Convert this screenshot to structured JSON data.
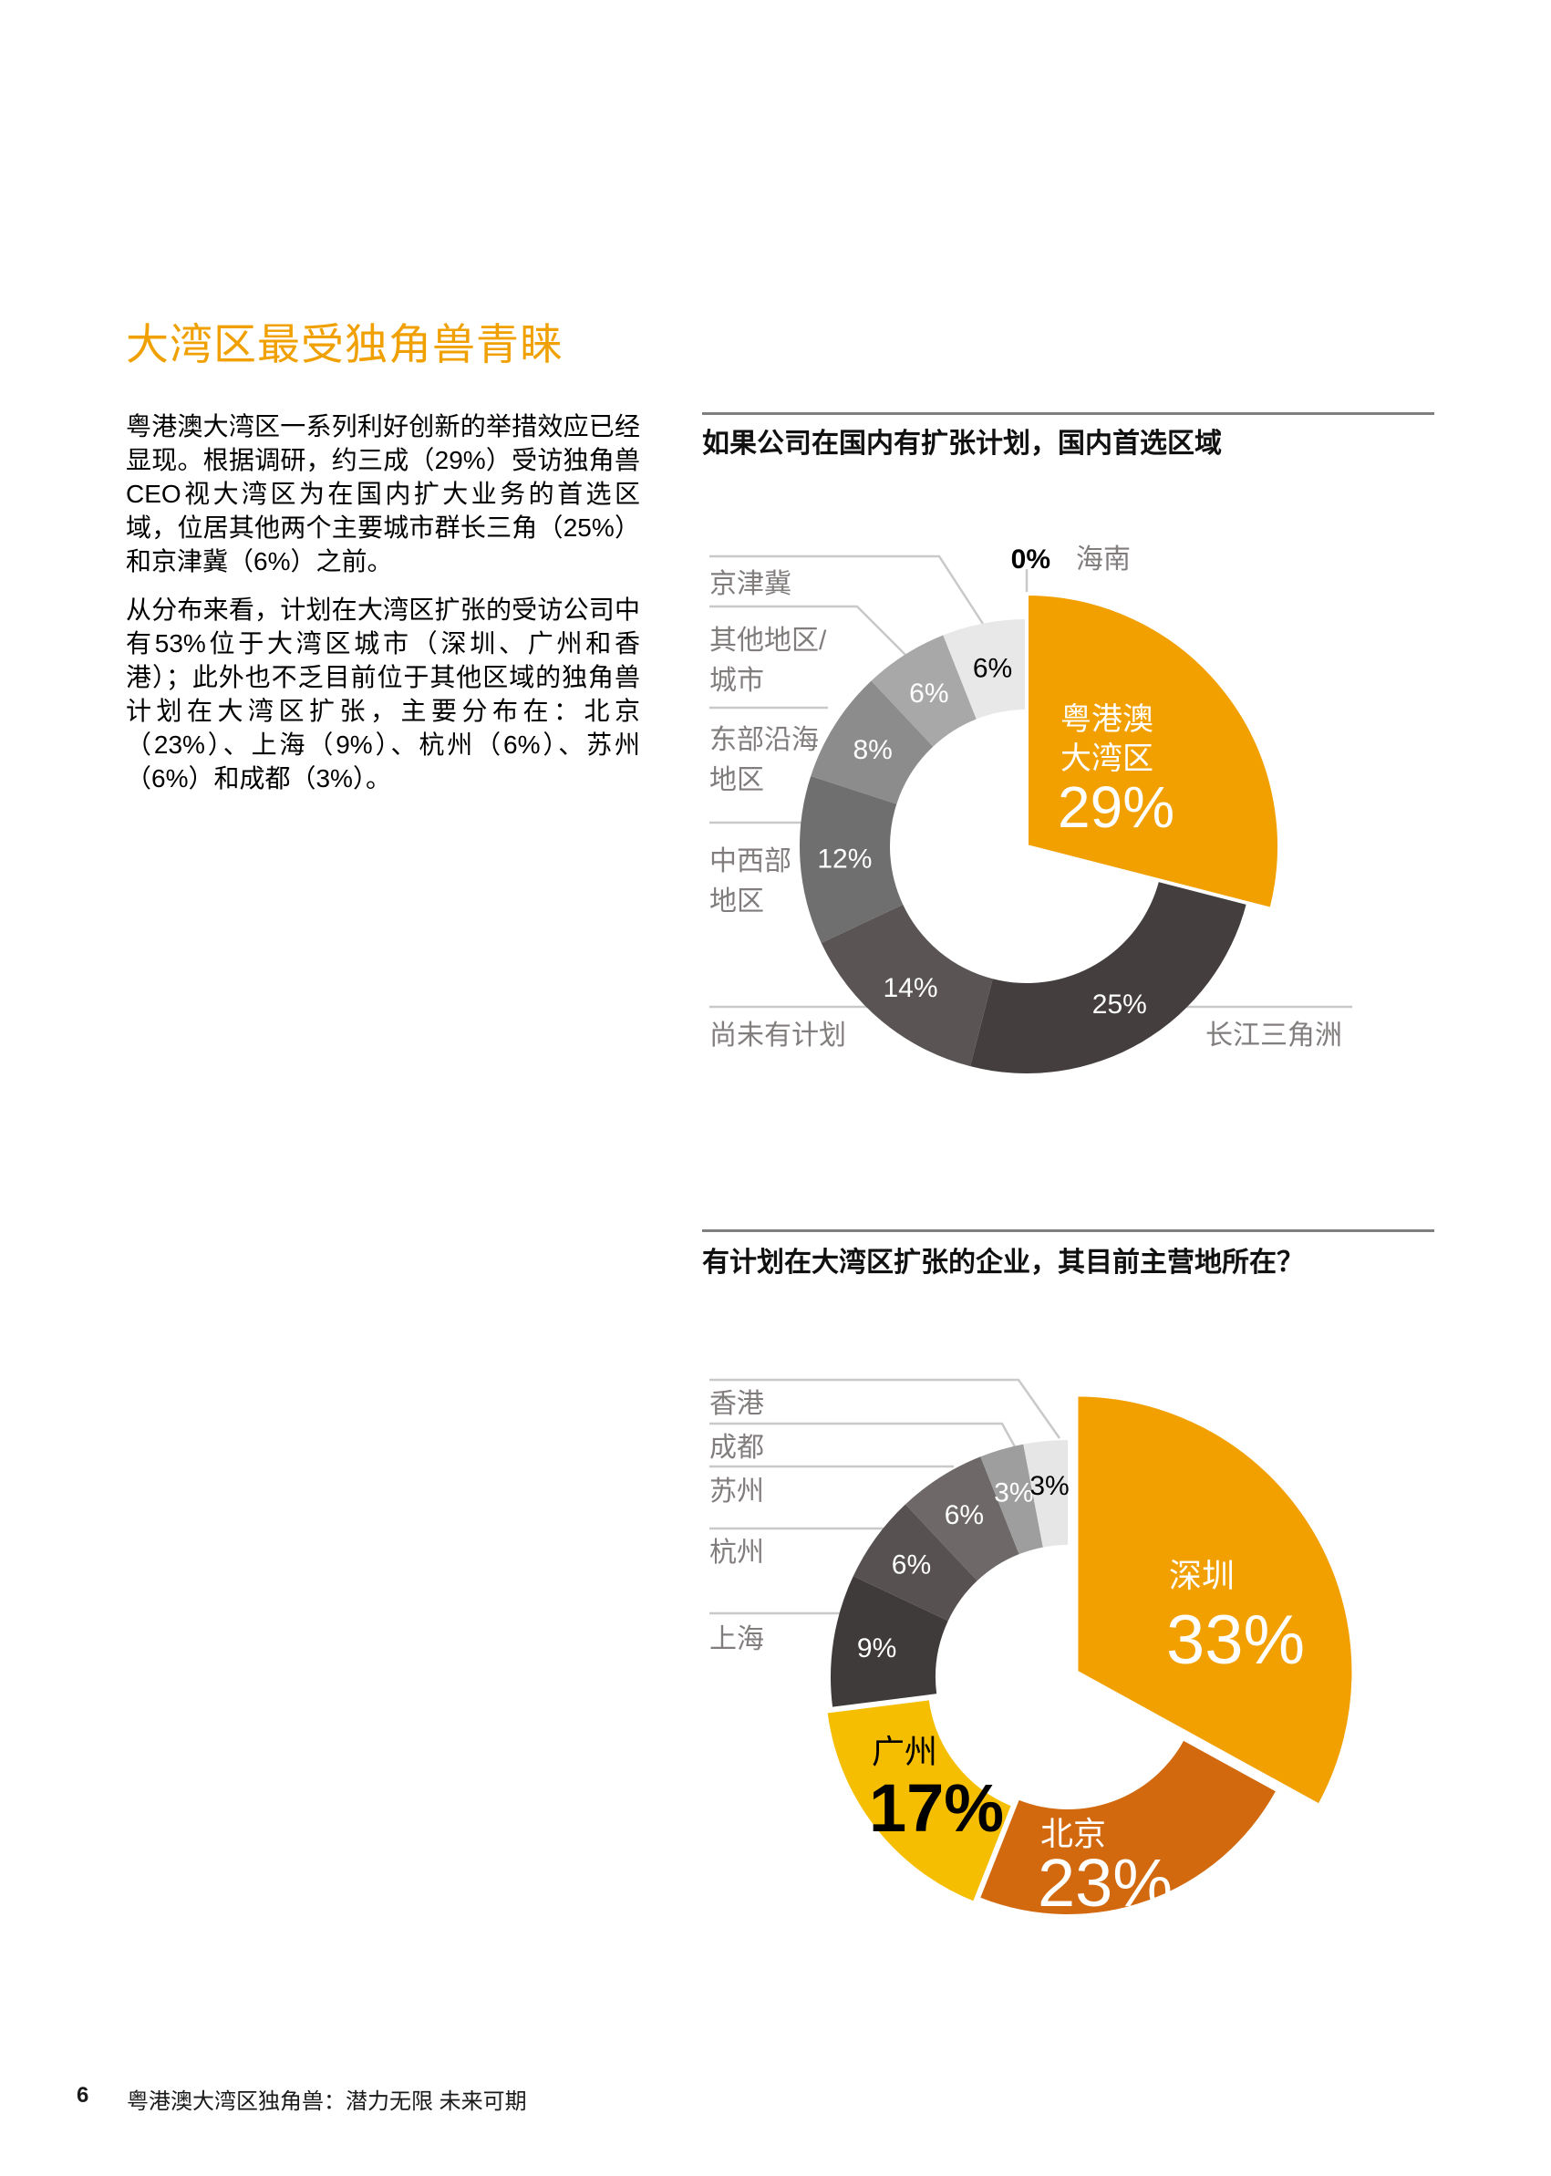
{
  "page": {
    "title": "大湾区最受独角兽青睐",
    "paragraphs": [
      "粤港澳大湾区一系列利好创新的举措效应已经显现。根据调研，约三成（29%）受访独角兽CEO视大湾区为在国内扩大业务的首选区域，位居其他两个主要城市群长三角（25%）和京津冀（6%）之前。",
      "从分布来看，计划在大湾区扩张的受访公司中有53%位于大湾区城市（深圳、广州和香港）；此外也不乏目前位于其他区域的独角兽计划在大湾区扩张，主要分布在：北京（23%）、上海（9%）、杭州（6%）、苏州（6%）和成都（3%）。"
    ],
    "footer": {
      "page_number": "6",
      "report_title": "粤港澳大湾区独角兽：潜力无限 未来可期"
    }
  },
  "colors": {
    "accent_orange": "#F0A000",
    "dark_orange": "#D2690E",
    "yellow": "#F5BE00",
    "rule_gray": "#7F7F7F",
    "label_gray": "#827D7D",
    "leader_gray": "#C9C9C9"
  },
  "chart_data": [
    {
      "type": "pie",
      "title": "如果公司在国内有扩张计划，国内首选区域",
      "legend_position": "callout-labels",
      "slices": [
        {
          "name": "粤港澳大湾区",
          "value": 29,
          "color": "#F2A000",
          "label_lines": [
            "粤港澳",
            "大湾区"
          ]
        },
        {
          "name": "长江三角洲",
          "value": 25,
          "color": "#453E3E"
        },
        {
          "name": "尚未有计划",
          "value": 14,
          "color": "#5A5454"
        },
        {
          "name": "中西部地区",
          "value": 12,
          "color": "#6F6F6F",
          "label_lines": [
            "中西部",
            "地区"
          ]
        },
        {
          "name": "东部沿海地区",
          "value": 8,
          "color": "#8C8C8C",
          "label_lines": [
            "东部沿海",
            "地区"
          ]
        },
        {
          "name": "其他地区/城市",
          "value": 6,
          "color": "#A8A8A8",
          "label_lines": [
            "其他地区/",
            "城市"
          ]
        },
        {
          "name": "京津冀",
          "value": 6,
          "color": "#E8E8E8",
          "pct_color": "#000000"
        },
        {
          "name": "海南",
          "value": 0,
          "color": "#E8E8E8"
        }
      ]
    },
    {
      "type": "pie",
      "title": "有计划在大湾区扩张的企业，其目前主营地所在？",
      "legend_position": "callout-labels",
      "slices": [
        {
          "name": "深圳",
          "value": 33,
          "color": "#F2A000"
        },
        {
          "name": "北京",
          "value": 23,
          "color": "#D2690E"
        },
        {
          "name": "广州",
          "value": 17,
          "color": "#F5BE00"
        },
        {
          "name": "上海",
          "value": 9,
          "color": "#403B3B"
        },
        {
          "name": "杭州",
          "value": 6,
          "color": "#575151"
        },
        {
          "name": "苏州",
          "value": 6,
          "color": "#6E6868"
        },
        {
          "name": "成都",
          "value": 3,
          "color": "#9E9E9E"
        },
        {
          "name": "香港",
          "value": 3,
          "color": "#E6E6E6",
          "pct_color": "#000000"
        }
      ]
    }
  ]
}
